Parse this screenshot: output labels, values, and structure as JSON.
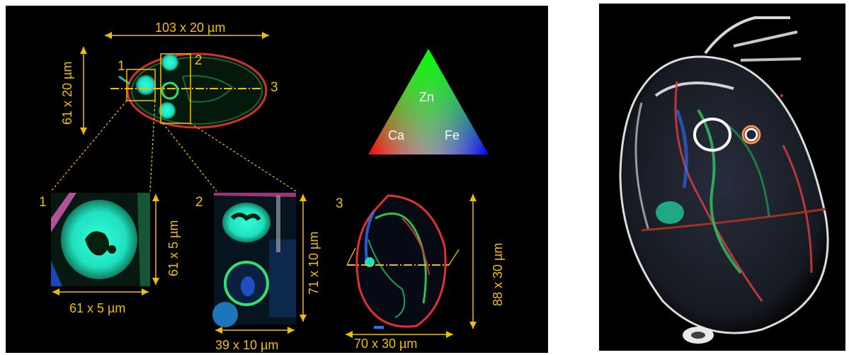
{
  "figure": {
    "dimensions": {
      "overview_width": "103 x 20 µm",
      "overview_height": "61 x 20 µm",
      "inset1_width": "61 x 5 µm",
      "inset1_height": "61 x 5 µm",
      "inset2_height": "71 x 10 µm",
      "inset2_width": "39 x 10 µm",
      "inset3_height": "88 x 30 µm",
      "inset3_width": "70 x 30 µm"
    },
    "region_labels": {
      "overview_1": "1",
      "overview_2": "2",
      "overview_3": "3",
      "inset_1": "1",
      "inset_2": "2",
      "inset_3": "3"
    },
    "legend": {
      "top": "Zn",
      "left": "Ca",
      "right": "Fe"
    },
    "colors": {
      "annotation": "#f0c000",
      "background": "#000000",
      "zn": "#00ff60",
      "ca": "#ff2020",
      "fe": "#2040ff"
    }
  }
}
